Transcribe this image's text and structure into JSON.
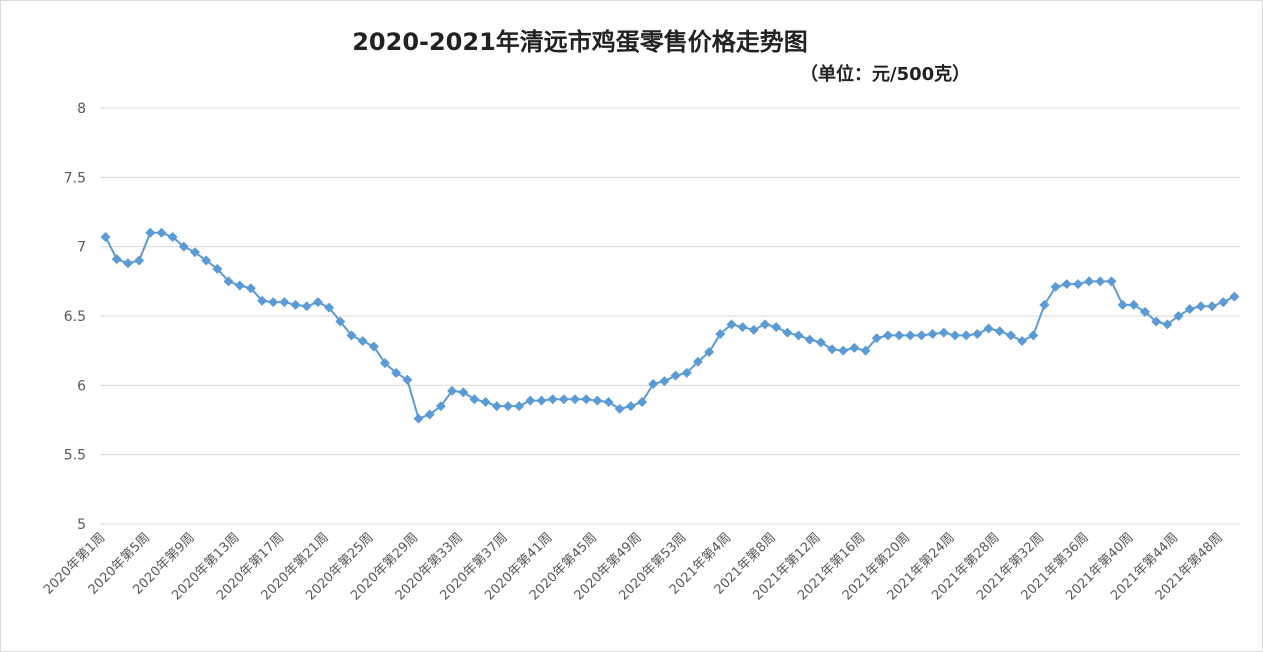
{
  "chart_data": {
    "type": "line",
    "title": "2020-2021年清远市鸡蛋零售价格走势图",
    "subtitle": "（单位：元/500克）",
    "ylim": [
      5,
      8
    ],
    "yticks": [
      "5",
      "5.5",
      "6",
      "6.5",
      "7",
      "7.5",
      "8"
    ],
    "grid": true,
    "legend": "none",
    "marker": "diamond",
    "series_color": "#5b9bd5",
    "x_tick_labels": [
      "2020年第1周",
      "2020年第5周",
      "2020年第9周",
      "2020年第13周",
      "2020年第17周",
      "2020年第21周",
      "2020年第25周",
      "2020年第29周",
      "2020年第33周",
      "2020年第37周",
      "2020年第41周",
      "2020年第45周",
      "2020年第49周",
      "2020年第53周",
      "2021年第4周",
      "2021年第8周",
      "2021年第12周",
      "2021年第16周",
      "2021年第20周",
      "2021年第24周",
      "2021年第28周",
      "2021年第32周",
      "2021年第36周",
      "2021年第40周",
      "2021年第44周",
      "2021年第48周"
    ],
    "x_tick_every": 4,
    "values": [
      7.07,
      6.91,
      6.88,
      6.9,
      7.1,
      7.1,
      7.07,
      7.0,
      6.96,
      6.9,
      6.84,
      6.75,
      6.72,
      6.7,
      6.61,
      6.6,
      6.6,
      6.58,
      6.57,
      6.6,
      6.56,
      6.46,
      6.36,
      6.32,
      6.28,
      6.16,
      6.09,
      6.04,
      5.76,
      5.79,
      5.85,
      5.96,
      5.95,
      5.9,
      5.88,
      5.85,
      5.85,
      5.85,
      5.89,
      5.89,
      5.9,
      5.9,
      5.9,
      5.9,
      5.89,
      5.88,
      5.83,
      5.85,
      5.88,
      6.01,
      6.03,
      6.07,
      6.09,
      6.17,
      6.24,
      6.37,
      6.44,
      6.42,
      6.4,
      6.44,
      6.42,
      6.38,
      6.36,
      6.33,
      6.31,
      6.26,
      6.25,
      6.27,
      6.25,
      6.34,
      6.36,
      6.36,
      6.36,
      6.36,
      6.37,
      6.38,
      6.36,
      6.36,
      6.37,
      6.41,
      6.39,
      6.36,
      6.32,
      6.36,
      6.58,
      6.71,
      6.73,
      6.73,
      6.75,
      6.75,
      6.75,
      6.58,
      6.58,
      6.53,
      6.46,
      6.44,
      6.5,
      6.55,
      6.57,
      6.57,
      6.6,
      6.64
    ]
  }
}
